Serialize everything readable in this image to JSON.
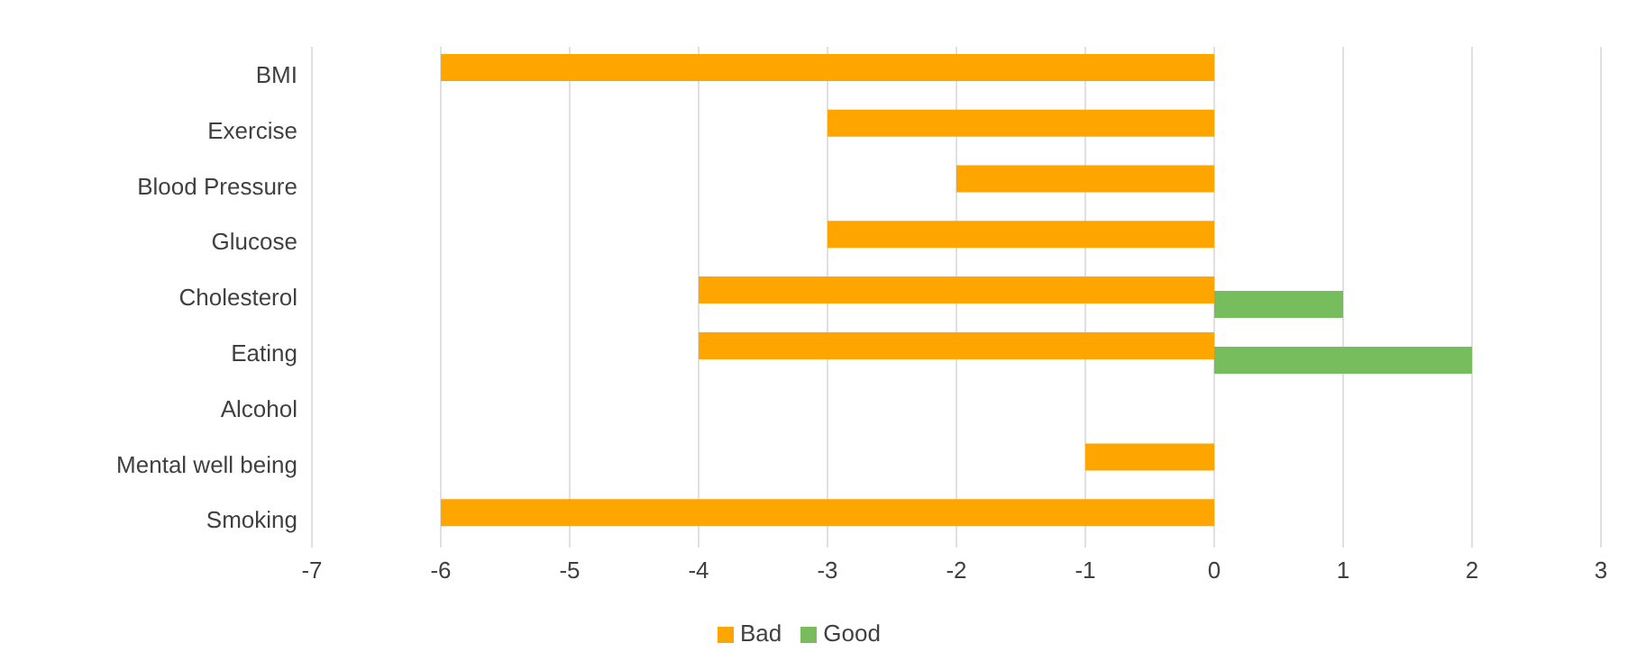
{
  "chart_data": {
    "type": "bar",
    "orientation": "horizontal",
    "categories": [
      "BMI",
      "Exercise",
      "Blood Pressure",
      "Glucose",
      "Cholesterol",
      "Eating",
      "Alcohol",
      "Mental well being",
      "Smoking"
    ],
    "series": [
      {
        "name": "Bad",
        "color": "#ffa500",
        "values": [
          -6,
          -3,
          -2,
          -3,
          -4,
          -4,
          null,
          -1,
          -6
        ]
      },
      {
        "name": "Good",
        "color": "#77bc5d",
        "values": [
          null,
          null,
          null,
          null,
          1,
          2,
          null,
          null,
          null
        ]
      }
    ],
    "xlim": [
      -7,
      3
    ],
    "xticks": [
      -7,
      -6,
      -5,
      -4,
      -3,
      -2,
      -1,
      0,
      1,
      2,
      3
    ],
    "grid": "x",
    "legend": "bottom"
  }
}
